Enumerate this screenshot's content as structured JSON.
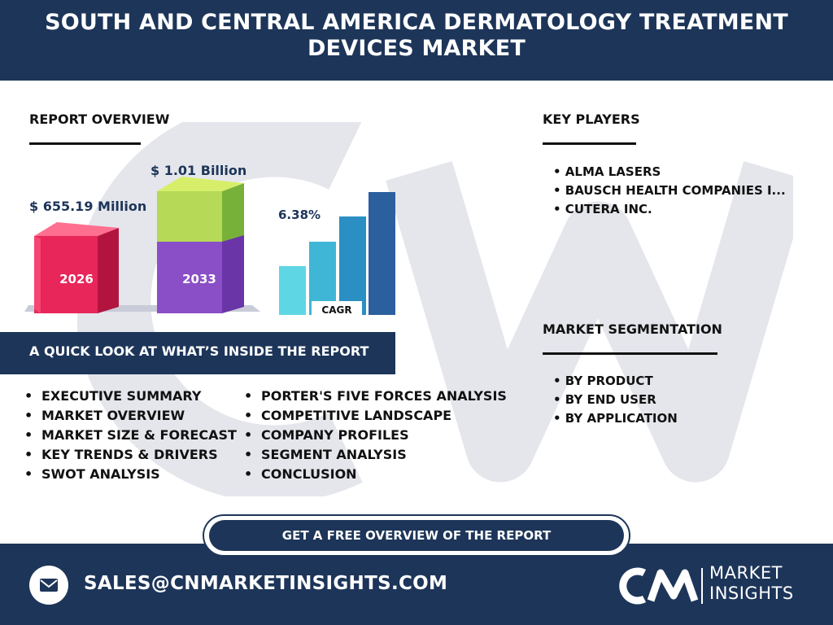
{
  "header": {
    "title": "SOUTH AND CENTRAL AMERICA DERMATOLOGY TREATMENT DEVICES MARKET"
  },
  "report_overview": {
    "title": "REPORT OVERVIEW",
    "value_2026": "$ 655.19 Million",
    "value_2033": "$ 1.01 Billion",
    "year_start": "2026",
    "year_end": "2033",
    "cagr_value": "6.38%",
    "cagr_label": "CAGR"
  },
  "key_players": {
    "title": "KEY PLAYERS",
    "items": [
      "• ALMA LASERS",
      "• BAUSCH HEALTH COMPANIES I...",
      "• CUTERA INC."
    ]
  },
  "market_segmentation": {
    "title": "MARKET SEGMENTATION",
    "items": [
      "• BY PRODUCT",
      "• BY END USER",
      "• BY APPLICATION"
    ]
  },
  "quick_look": {
    "title": "A QUICK LOOK AT WHAT’S INSIDE THE REPORT",
    "col1": [
      "EXECUTIVE SUMMARY",
      "MARKET OVERVIEW",
      "MARKET SIZE & FORECAST",
      "KEY TRENDS & DRIVERS",
      "SWOT ANALYSIS"
    ],
    "col2": [
      "PORTER'S FIVE FORCES ANALYSIS",
      "COMPETITIVE LANDSCAPE",
      "COMPANY PROFILES",
      "SEGMENT ANALYSIS",
      "CONCLUSION"
    ]
  },
  "cta": {
    "label": "GET A FREE OVERVIEW OF THE REPORT"
  },
  "footer": {
    "email": "SALES@CNMARKETINSIGHTS.COM",
    "logo_mark": "CN",
    "logo_line1": "MARKET",
    "logo_line2": "INSIGHTS"
  },
  "icons": {
    "mail": "mail-icon"
  },
  "colors": {
    "navy": "#1d3559",
    "pink": "#e8265a",
    "green": "#8cc63f",
    "purple": "#8a4fc7",
    "cagr_bars": [
      "#5fd6e4",
      "#3fb6d6",
      "#2b8fc4",
      "#2c5f9e"
    ]
  }
}
